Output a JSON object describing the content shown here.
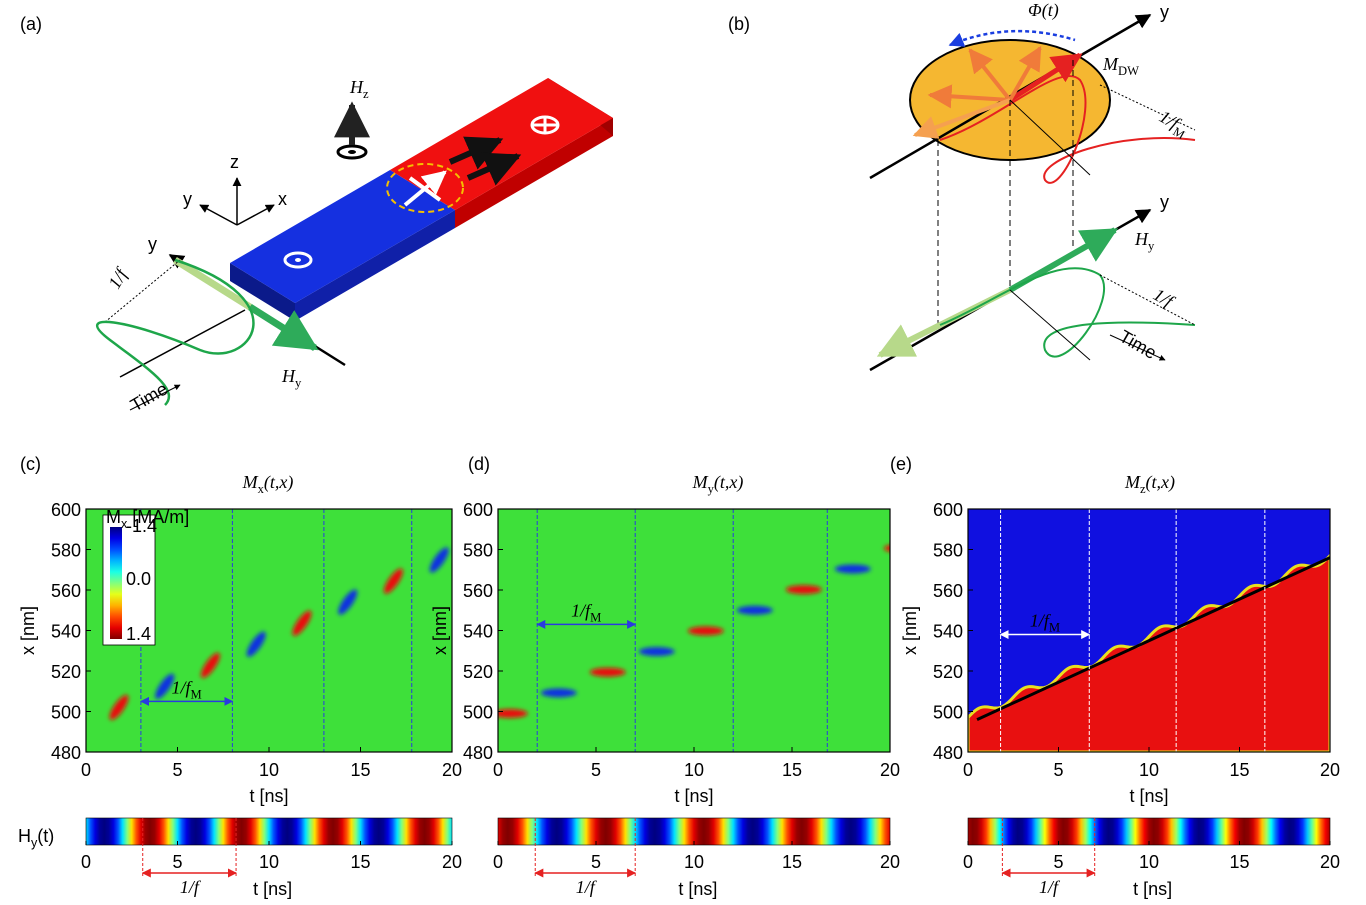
{
  "a": {
    "label": "(a)",
    "hz": {
      "base": "H",
      "sub": "z"
    },
    "axis_z": "z",
    "axis_y": "y",
    "axis_x": "x",
    "field_axis": "y",
    "period": "1/f",
    "field": {
      "base": "H",
      "sub": "y"
    },
    "time": "Time"
  },
  "b": {
    "label": "(b)",
    "phase": "Φ(t)",
    "axis_top": "y",
    "moment": {
      "base": "M",
      "sub": "DW"
    },
    "period_m": {
      "base": "1/f",
      "sub": "M"
    },
    "axis_bottom": "y",
    "field": {
      "base": "H",
      "sub": "y"
    },
    "period": "1/f",
    "time": "Time"
  },
  "strip_label": {
    "base": "H",
    "sub": "y",
    "rest": "(t)"
  },
  "maps": [
    {
      "label": "(c)",
      "title": {
        "base": "M",
        "sub": "x",
        "rest": "(t,x)"
      },
      "y_label": "x [nm]",
      "yticks": [
        480,
        500,
        520,
        540,
        560,
        580,
        600
      ],
      "xticks": [
        0,
        5,
        10,
        15,
        20
      ],
      "x_label": "t [ns]",
      "period": {
        "base": "1/f",
        "sub": "M"
      },
      "colorbar": {
        "title": {
          "base": "M",
          "sub": "x",
          "rest": " [MA/m]"
        },
        "ticks": [
          "-1.4",
          "0.0",
          "1.4"
        ]
      },
      "strip": {
        "xticks": [
          0,
          5,
          10,
          15,
          20
        ],
        "x_label": "t [ns]",
        "period": "1/f"
      }
    },
    {
      "label": "(d)",
      "title": {
        "base": "M",
        "sub": "y",
        "rest": "(t,x)"
      },
      "y_label": "x [nm]",
      "yticks": [
        480,
        500,
        520,
        540,
        560,
        580,
        600
      ],
      "xticks": [
        0,
        5,
        10,
        15,
        20
      ],
      "x_label": "t [ns]",
      "period": {
        "base": "1/f",
        "sub": "M"
      },
      "strip": {
        "xticks": [
          0,
          5,
          10,
          15,
          20
        ],
        "x_label": "t [ns]",
        "period": "1/f"
      }
    },
    {
      "label": "(e)",
      "title": {
        "base": "M",
        "sub": "z",
        "rest": "(t,x)"
      },
      "y_label": "x [nm]",
      "yticks": [
        480,
        500,
        520,
        540,
        560,
        580,
        600
      ],
      "xticks": [
        0,
        5,
        10,
        15,
        20
      ],
      "x_label": "t [ns]",
      "period": {
        "base": "1/f",
        "sub": "M"
      },
      "strip": {
        "xticks": [
          0,
          5,
          10,
          15,
          20
        ],
        "x_label": "t [ns]",
        "period": "1/f"
      }
    }
  ]
}
